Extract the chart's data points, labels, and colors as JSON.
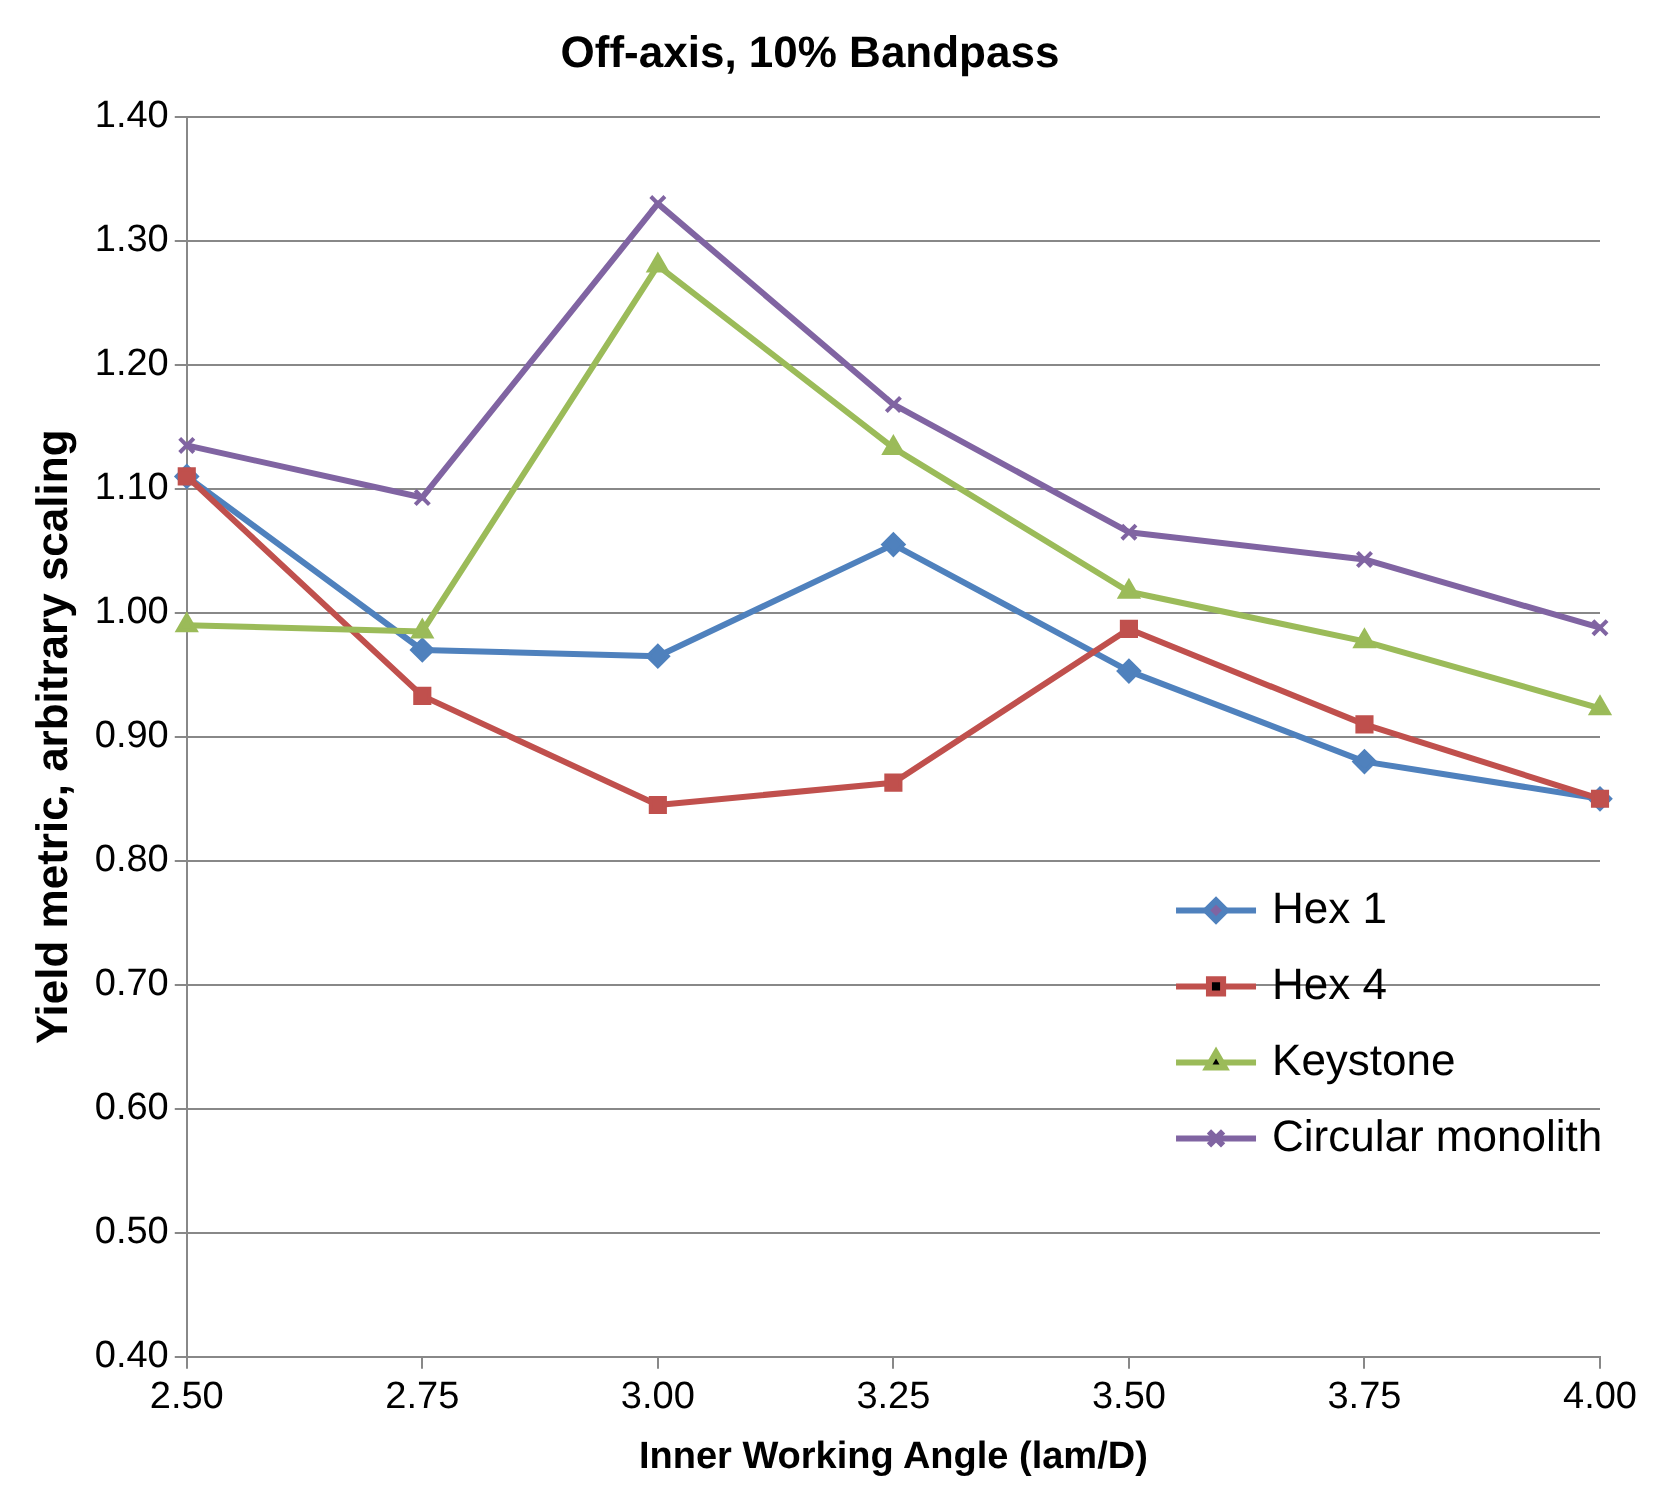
{
  "chart_data": {
    "type": "line",
    "title": "Off-axis, 10% Bandpass",
    "xlabel": "Inner Working Angle (lam/D)",
    "ylabel": "Yield metric, arbitrary scaling",
    "x": [
      2.5,
      2.75,
      3.0,
      3.25,
      3.5,
      3.75,
      4.0
    ],
    "series": [
      {
        "name": "Hex 1",
        "color": "#4f81bd",
        "marker": "diamond",
        "values": [
          1.11,
          0.97,
          0.965,
          1.055,
          0.953,
          0.88,
          0.85
        ]
      },
      {
        "name": "Hex 4",
        "color": "#c0504d",
        "marker": "square",
        "values": [
          1.11,
          0.933,
          0.845,
          0.863,
          0.987,
          0.91,
          0.85
        ]
      },
      {
        "name": "Keystone",
        "color": "#9bbb59",
        "marker": "triangle",
        "values": [
          0.99,
          0.985,
          1.28,
          1.133,
          1.017,
          0.977,
          0.923
        ]
      },
      {
        "name": "Circular monolith",
        "color": "#8064a2",
        "marker": "cross",
        "values": [
          1.135,
          1.093,
          1.33,
          1.168,
          1.065,
          1.043,
          0.988
        ]
      }
    ],
    "xlim": [
      2.5,
      4.0
    ],
    "xticks": [
      {
        "value": 2.5,
        "label": "2.50"
      },
      {
        "value": 2.75,
        "label": "2.75"
      },
      {
        "value": 3.0,
        "label": "3.00"
      },
      {
        "value": 3.25,
        "label": "3.25"
      },
      {
        "value": 3.5,
        "label": "3.50"
      },
      {
        "value": 3.75,
        "label": "3.75"
      },
      {
        "value": 4.0,
        "label": "4.00"
      }
    ],
    "ylim": [
      0.4,
      1.4
    ],
    "yticks": [
      {
        "value": 0.4,
        "label": "0.40"
      },
      {
        "value": 0.5,
        "label": "0.50"
      },
      {
        "value": 0.6,
        "label": "0.60"
      },
      {
        "value": 0.7,
        "label": "0.70"
      },
      {
        "value": 0.8,
        "label": "0.80"
      },
      {
        "value": 0.9,
        "label": "0.90"
      },
      {
        "value": 1.0,
        "label": "1.00"
      },
      {
        "value": 1.1,
        "label": "1.10"
      },
      {
        "value": 1.2,
        "label": "1.20"
      },
      {
        "value": 1.3,
        "label": "1.30"
      },
      {
        "value": 1.4,
        "label": "1.40"
      }
    ],
    "grid": "y",
    "legend": "right",
    "line_style": "solid"
  }
}
